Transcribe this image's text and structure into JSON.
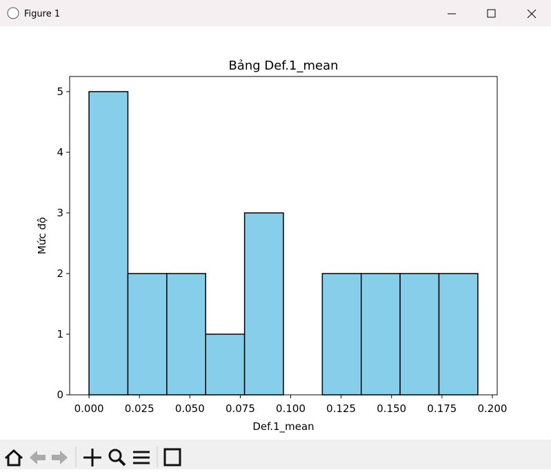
{
  "window": {
    "title": "Figure 1"
  },
  "chart_data": {
    "type": "histogram",
    "title": "Bảng Def.1_mean",
    "x_label": "Def.1_mean",
    "y_label": "Mức độ",
    "bins": [
      0,
      0.01928,
      0.03856,
      0.05784,
      0.07712,
      0.0964,
      0.11568,
      0.13496,
      0.15424,
      0.17352,
      0.1928
    ],
    "values": [
      5,
      2,
      2,
      1,
      3,
      0,
      2,
      2,
      2,
      2
    ],
    "color": "#87ceeb",
    "edgecolor": "#000000",
    "xlim": [
      -0.0096,
      0.2024
    ],
    "xticks": [
      {
        "value": 0,
        "label": "0.000"
      },
      {
        "value": 0.025,
        "label": "0.025"
      },
      {
        "value": 0.05,
        "label": "0.050"
      },
      {
        "value": 0.075,
        "label": "0.075"
      },
      {
        "value": 0.1,
        "label": "0.100"
      },
      {
        "value": 0.125,
        "label": "0.125"
      },
      {
        "value": 0.15,
        "label": "0.150"
      },
      {
        "value": 0.175,
        "label": "0.175"
      },
      {
        "value": 0.2,
        "label": "0.200"
      }
    ],
    "ylim": [
      0,
      5.25
    ],
    "yticks": [
      0,
      1,
      2,
      3,
      4,
      5
    ],
    "grid": false
  }
}
